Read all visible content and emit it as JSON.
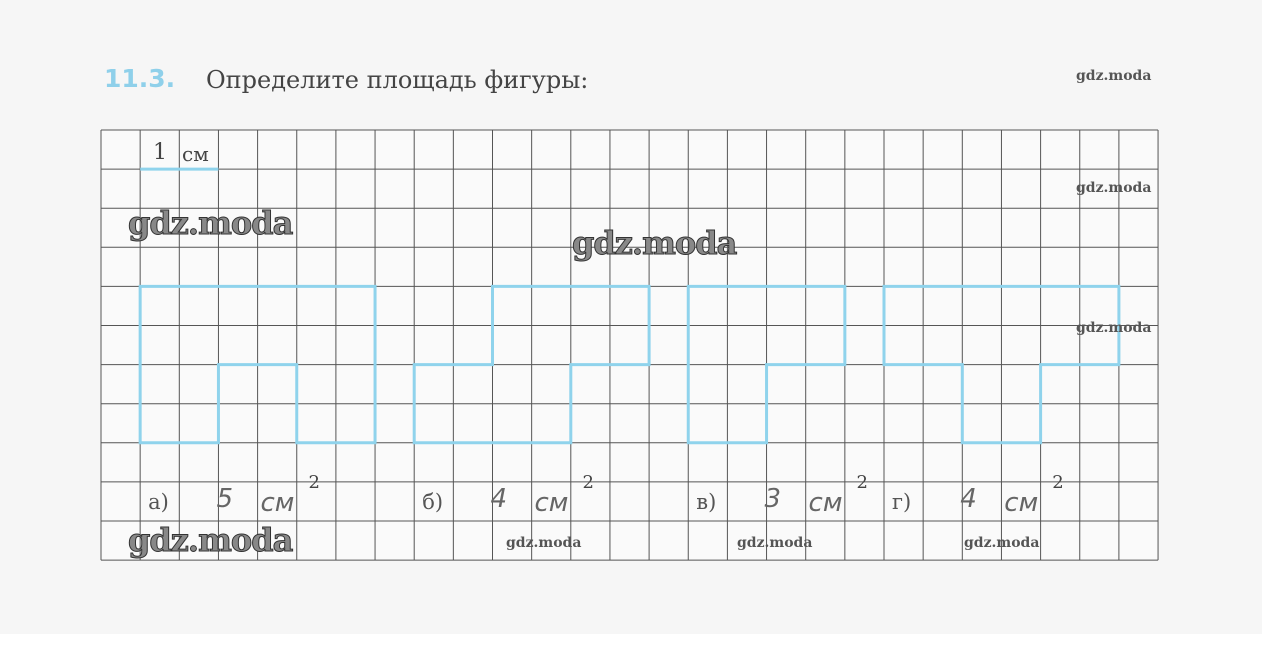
{
  "exercise": {
    "number": "11.3.",
    "prompt": "Определите площадь фигуры:"
  },
  "scale": {
    "value": "1",
    "unit": "см"
  },
  "colors": {
    "figure_outline": "#8fd3ec",
    "exercise_number": "#8fd0ea",
    "grid": "#555555"
  },
  "grid": {
    "columns": 27,
    "rows": 11
  },
  "figures": [
    {
      "label": "а)",
      "answer": "5",
      "unit": "см",
      "exponent": "2",
      "cells": [
        [
          1,
          4
        ],
        [
          7,
          4
        ],
        [
          7,
          8
        ],
        [
          5,
          8
        ],
        [
          5,
          6
        ],
        [
          3,
          6
        ],
        [
          3,
          8
        ],
        [
          1,
          8
        ]
      ]
    },
    {
      "label": "б)",
      "answer": "4",
      "unit": "см",
      "exponent": "2",
      "cells": [
        [
          8,
          6
        ],
        [
          10,
          6
        ],
        [
          10,
          4
        ],
        [
          14,
          4
        ],
        [
          14,
          6
        ],
        [
          12,
          6
        ],
        [
          12,
          8
        ],
        [
          8,
          8
        ]
      ]
    },
    {
      "label": "в)",
      "answer": "3",
      "unit": "см",
      "exponent": "2",
      "cells": [
        [
          15,
          4
        ],
        [
          19,
          4
        ],
        [
          19,
          6
        ],
        [
          17,
          6
        ],
        [
          17,
          8
        ],
        [
          15,
          8
        ]
      ]
    },
    {
      "label": "г)",
      "answer": "4",
      "unit": "см",
      "exponent": "2",
      "cells": [
        [
          20,
          4
        ],
        [
          26,
          4
        ],
        [
          26,
          6
        ],
        [
          24,
          6
        ],
        [
          24,
          8
        ],
        [
          22,
          8
        ],
        [
          22,
          6
        ],
        [
          20,
          6
        ]
      ]
    }
  ],
  "watermark": "gdz.moda"
}
